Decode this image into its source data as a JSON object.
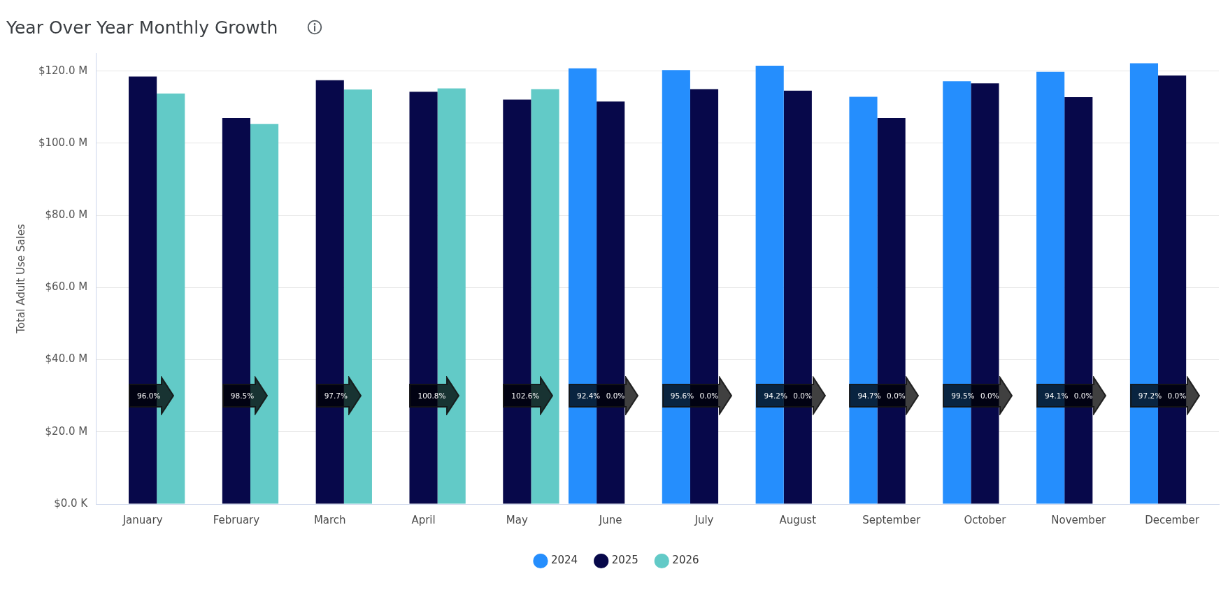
{
  "chart_data": {
    "type": "bar",
    "title": "Year Over Year Monthly Growth",
    "ylabel": "Total Adult Use Sales",
    "categories": [
      "January",
      "February",
      "March",
      "April",
      "May",
      "June",
      "July",
      "August",
      "September",
      "October",
      "November",
      "December"
    ],
    "series": [
      {
        "name": "2024",
        "color": "#258efd",
        "values": [
          null,
          null,
          null,
          null,
          null,
          120.8,
          120.3,
          121.5,
          112.9,
          117.2,
          119.8,
          122.2
        ]
      },
      {
        "name": "2025",
        "color": "#07084a",
        "values": [
          118.5,
          107.0,
          117.5,
          114.3,
          112.1,
          111.6,
          115.0,
          114.6,
          107.0,
          116.6,
          112.8,
          118.8
        ]
      },
      {
        "name": "2026",
        "color": "#62cac7",
        "values": [
          113.8,
          105.4,
          114.9,
          115.2,
          115.0,
          null,
          null,
          null,
          null,
          null,
          null,
          null
        ]
      }
    ],
    "ylim": [
      0,
      125
    ],
    "yticks": [
      {
        "value": 0,
        "label": "$0.0 K"
      },
      {
        "value": 20,
        "label": "$20.0 M"
      },
      {
        "value": 40,
        "label": "$40.0 M"
      },
      {
        "value": 60,
        "label": "$60.0 M"
      },
      {
        "value": 80,
        "label": "$80.0 M"
      },
      {
        "value": 100,
        "label": "$100.0 M"
      },
      {
        "value": 120,
        "label": "$120.0 M"
      }
    ],
    "grid": "y",
    "legend": "bottom",
    "annotations": [
      "96.0%",
      "98.5%",
      "97.7%",
      "100.8%",
      "102.6%",
      "92.4% 0.0%",
      "95.6% 0.0%",
      "94.2% 0.0%",
      "94.7% 0.0%",
      "99.5% 0.0%",
      "94.1% 0.0%",
      "97.2% 0.0%"
    ]
  }
}
